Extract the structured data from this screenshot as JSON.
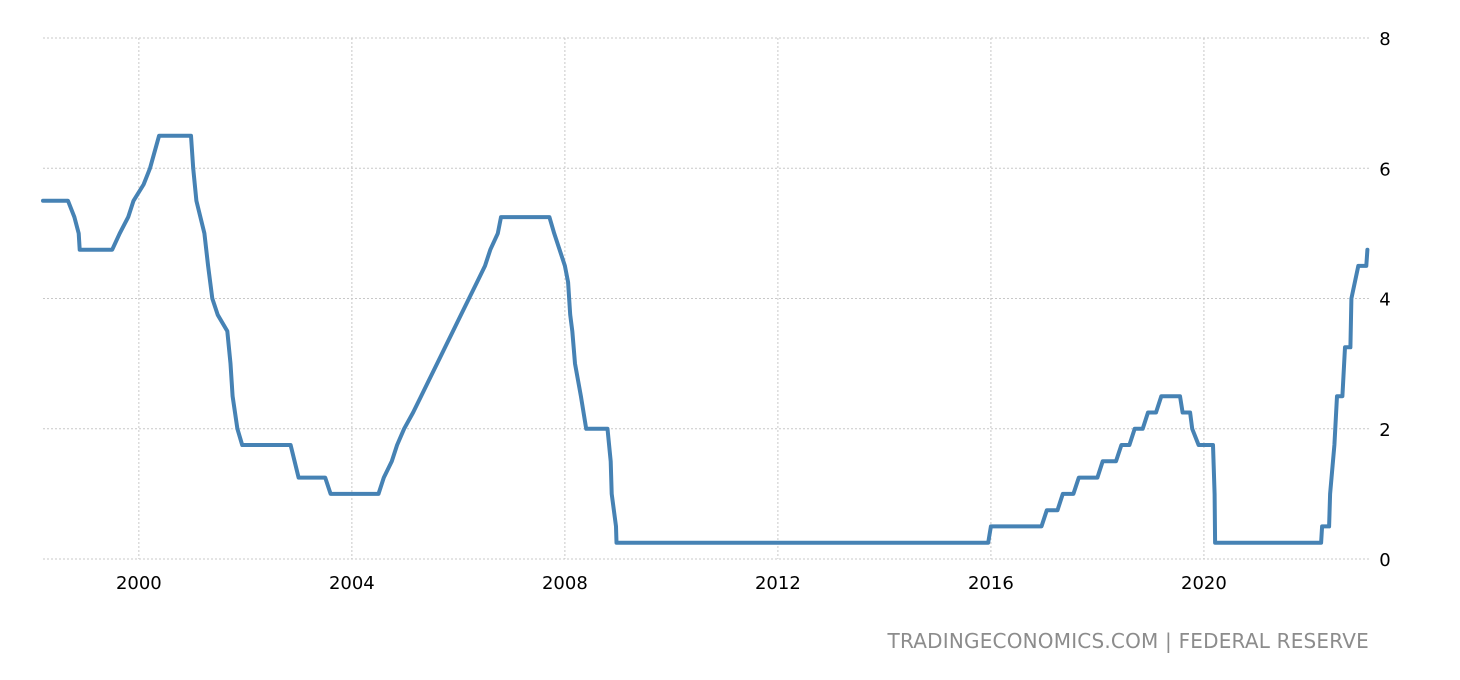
{
  "credit": {
    "source_text": "TRADINGECONOMICS.COM",
    "separator": "|",
    "provider_text": "FEDERAL RESERVE"
  },
  "colors": {
    "series": "#4682b4",
    "grid": "#c8c8c8",
    "credit": "#8c8c8c"
  },
  "chart_data": {
    "type": "line",
    "title": "",
    "xlabel": "",
    "ylabel": "",
    "xlim": [
      1998.2,
      2023.1
    ],
    "ylim": [
      0,
      8
    ],
    "x_ticks": [
      2000,
      2004,
      2008,
      2012,
      2016,
      2020
    ],
    "y_ticks": [
      0,
      2,
      4,
      6,
      8
    ],
    "y_axis_side": "right",
    "grid": true,
    "legend": "none",
    "step": true,
    "series": [
      {
        "points": [
          [
            1998.2,
            5.5
          ],
          [
            1998.67,
            5.5
          ],
          [
            1998.79,
            5.25
          ],
          [
            1998.87,
            5.0
          ],
          [
            1998.89,
            4.75
          ],
          [
            1999.5,
            4.75
          ],
          [
            1999.64,
            5.0
          ],
          [
            1999.8,
            5.25
          ],
          [
            1999.9,
            5.5
          ],
          [
            2000.09,
            5.75
          ],
          [
            2000.21,
            6.0
          ],
          [
            2000.38,
            6.5
          ],
          [
            2000.98,
            6.5
          ],
          [
            2001.02,
            6.0
          ],
          [
            2001.08,
            5.5
          ],
          [
            2001.23,
            5.0
          ],
          [
            2001.3,
            4.5
          ],
          [
            2001.38,
            4.0
          ],
          [
            2001.48,
            3.75
          ],
          [
            2001.66,
            3.5
          ],
          [
            2001.72,
            3.0
          ],
          [
            2001.76,
            2.5
          ],
          [
            2001.85,
            2.0
          ],
          [
            2001.94,
            1.75
          ],
          [
            2002.85,
            1.75
          ],
          [
            2003.0,
            1.25
          ],
          [
            2003.5,
            1.25
          ],
          [
            2003.6,
            1.0
          ],
          [
            2004.5,
            1.0
          ],
          [
            2004.6,
            1.25
          ],
          [
            2004.75,
            1.5
          ],
          [
            2004.85,
            1.75
          ],
          [
            2004.98,
            2.0
          ],
          [
            2005.15,
            2.25
          ],
          [
            2005.3,
            2.5
          ],
          [
            2005.45,
            2.75
          ],
          [
            2005.6,
            3.0
          ],
          [
            2005.75,
            3.25
          ],
          [
            2005.9,
            3.5
          ],
          [
            2006.05,
            3.75
          ],
          [
            2006.2,
            4.0
          ],
          [
            2006.35,
            4.25
          ],
          [
            2006.5,
            4.5
          ],
          [
            2006.6,
            4.75
          ],
          [
            2006.74,
            5.0
          ],
          [
            2006.8,
            5.25
          ],
          [
            2007.71,
            5.25
          ],
          [
            2007.8,
            5.0
          ],
          [
            2007.9,
            4.75
          ],
          [
            2008.0,
            4.5
          ],
          [
            2008.06,
            4.25
          ],
          [
            2008.1,
            3.75
          ],
          [
            2008.14,
            3.5
          ],
          [
            2008.19,
            3.0
          ],
          [
            2008.3,
            2.5
          ],
          [
            2008.4,
            2.0
          ],
          [
            2008.8,
            2.0
          ],
          [
            2008.86,
            1.5
          ],
          [
            2008.88,
            1.0
          ],
          [
            2008.96,
            0.5
          ],
          [
            2008.97,
            0.25
          ],
          [
            2015.95,
            0.25
          ],
          [
            2016.0,
            0.5
          ],
          [
            2016.95,
            0.5
          ],
          [
            2017.05,
            0.75
          ],
          [
            2017.25,
            0.75
          ],
          [
            2017.35,
            1.0
          ],
          [
            2017.55,
            1.0
          ],
          [
            2017.65,
            1.25
          ],
          [
            2018.0,
            1.25
          ],
          [
            2018.1,
            1.5
          ],
          [
            2018.35,
            1.5
          ],
          [
            2018.45,
            1.75
          ],
          [
            2018.6,
            1.75
          ],
          [
            2018.7,
            2.0
          ],
          [
            2018.85,
            2.0
          ],
          [
            2018.95,
            2.25
          ],
          [
            2019.1,
            2.25
          ],
          [
            2019.2,
            2.5
          ],
          [
            2019.55,
            2.5
          ],
          [
            2019.6,
            2.25
          ],
          [
            2019.74,
            2.25
          ],
          [
            2019.78,
            2.0
          ],
          [
            2019.9,
            1.75
          ],
          [
            2020.17,
            1.75
          ],
          [
            2020.2,
            1.0
          ],
          [
            2020.21,
            0.25
          ],
          [
            2022.2,
            0.25
          ],
          [
            2022.22,
            0.5
          ],
          [
            2022.35,
            0.5
          ],
          [
            2022.37,
            1.0
          ],
          [
            2022.45,
            1.75
          ],
          [
            2022.5,
            2.5
          ],
          [
            2022.6,
            2.5
          ],
          [
            2022.65,
            3.25
          ],
          [
            2022.75,
            3.25
          ],
          [
            2022.77,
            4.0
          ],
          [
            2022.9,
            4.5
          ],
          [
            2023.05,
            4.5
          ],
          [
            2023.07,
            4.75
          ]
        ]
      }
    ]
  }
}
